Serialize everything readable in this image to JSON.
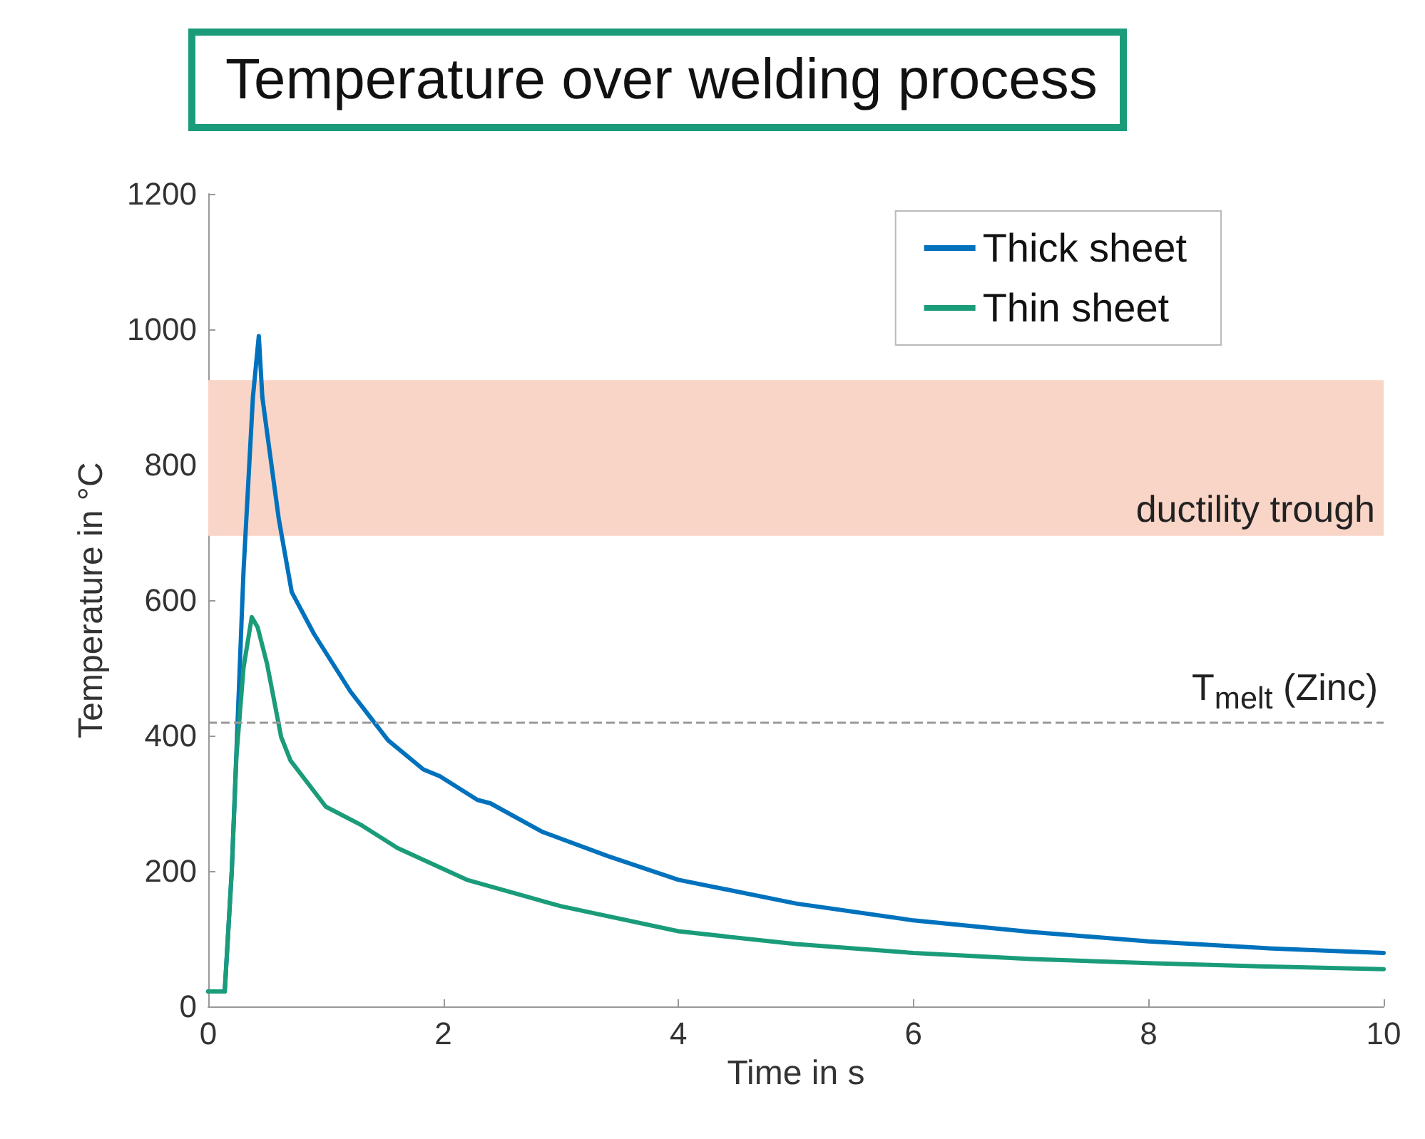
{
  "chart_data": {
    "type": "line",
    "title": "Temperature over welding process",
    "xlabel": "Time in s",
    "ylabel": "Temperature in °C",
    "xlim": [
      0,
      10
    ],
    "xticks": [
      0,
      2,
      4,
      6,
      8,
      10
    ],
    "ylim": [
      0,
      1200
    ],
    "yticks": [
      0,
      200,
      400,
      600,
      800,
      1000,
      1200
    ],
    "series": [
      {
        "name": "Thick sheet",
        "color": "#0072bd",
        "x": [
          0,
          0.14,
          0.2,
          0.3,
          0.38,
          0.43,
          0.46,
          0.5,
          0.6,
          0.71,
          0.9,
          1.21,
          1.53,
          1.83,
          1.97,
          2.29,
          2.4,
          2.84,
          3.4,
          4.0,
          5.0,
          6.0,
          7.0,
          8.0,
          9.0,
          10.0
        ],
        "values": [
          22,
          22,
          200,
          643,
          900,
          990,
          900,
          848,
          720,
          612,
          550,
          465,
          393,
          350,
          340,
          305,
          300,
          258,
          222,
          187,
          152,
          127,
          110,
          96,
          86,
          79
        ]
      },
      {
        "name": "Thin sheet",
        "color": "#1a9c7a",
        "x": [
          0,
          0.14,
          0.2,
          0.24,
          0.3,
          0.37,
          0.42,
          0.5,
          0.62,
          0.7,
          1.0,
          1.3,
          1.61,
          2.2,
          3.0,
          4.0,
          5.0,
          6.0,
          7.0,
          8.0,
          9.0,
          10.0
        ],
        "values": [
          22,
          22,
          200,
          370,
          500,
          575,
          560,
          506,
          398,
          363,
          295,
          268,
          234,
          187,
          148,
          111,
          92,
          79,
          70,
          64,
          59,
          55
        ]
      }
    ],
    "bands": [
      {
        "axis": "y",
        "from": 695,
        "to": 925,
        "label": "ductility trough",
        "color": "#f9d5c8"
      }
    ],
    "ref_lines": [
      {
        "axis": "y",
        "value": 420,
        "label": "T$_{melt}$ (Zinc)",
        "color": "#999999",
        "line_style": "dashed"
      }
    ],
    "legend": "top right",
    "grid": false,
    "marker": "none",
    "line_style": "solid"
  }
}
